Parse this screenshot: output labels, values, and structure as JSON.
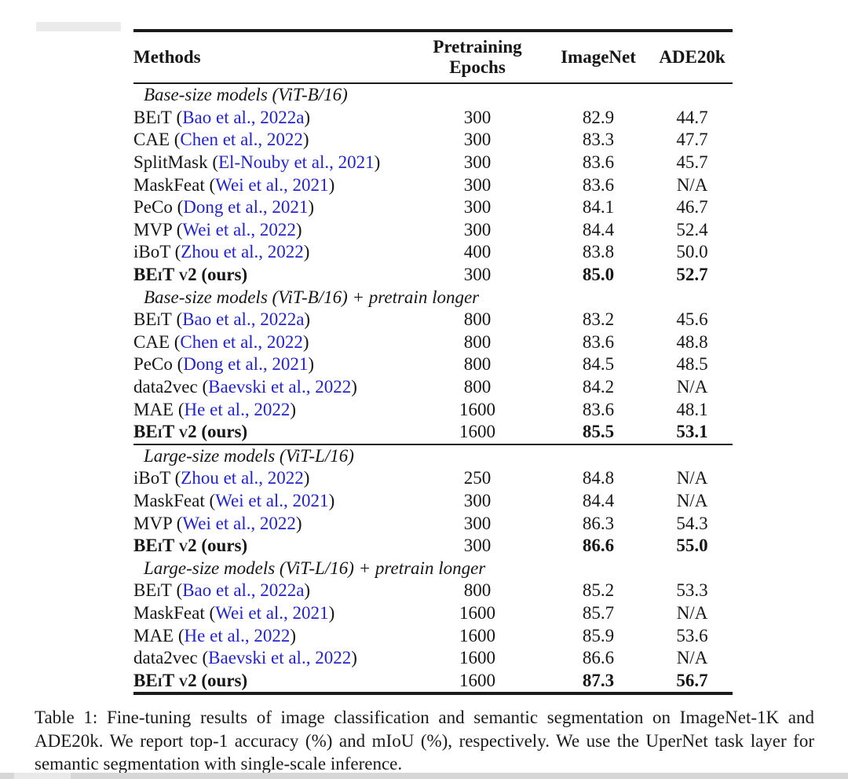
{
  "table": {
    "header": {
      "methods": "Methods",
      "pretraining_line1": "Pretraining",
      "pretraining_line2": "Epochs",
      "imagenet": "ImageNet",
      "ade20k": "ADE20k"
    },
    "accent_blue": "#2323cf",
    "rows": [
      {
        "label": "Base-size models (ViT-B/16)"
      },
      {
        "sc": "BEiT",
        "name": "",
        "open": " (",
        "cite": "Bao et al., 2022a",
        "close": ")",
        "epochs": "300",
        "imagenet": "82.9",
        "ade20k": "44.7"
      },
      {
        "sc": "",
        "name": "CAE",
        "open": " (",
        "cite": "Chen et al., 2022",
        "close": ")",
        "epochs": "300",
        "imagenet": "83.3",
        "ade20k": "47.7"
      },
      {
        "sc": "",
        "name": "SplitMask",
        "open": " (",
        "cite": "El-Nouby et al., 2021",
        "close": ")",
        "epochs": "300",
        "imagenet": "83.6",
        "ade20k": "45.7"
      },
      {
        "sc": "",
        "name": "MaskFeat",
        "open": " (",
        "cite": "Wei et al., 2021",
        "close": ")",
        "epochs": "300",
        "imagenet": "83.6",
        "ade20k": "N/A"
      },
      {
        "sc": "",
        "name": "PeCo",
        "open": " (",
        "cite": "Dong et al., 2021",
        "close": ")",
        "epochs": "300",
        "imagenet": "84.1",
        "ade20k": "46.7"
      },
      {
        "sc": "",
        "name": "MVP",
        "open": " (",
        "cite": "Wei et al., 2022",
        "close": ")",
        "epochs": "300",
        "imagenet": "84.4",
        "ade20k": "52.4"
      },
      {
        "sc": "",
        "name": "iBoT",
        "open": " (",
        "cite": "Zhou et al., 2022",
        "close": ")",
        "epochs": "400",
        "imagenet": "83.8",
        "ade20k": "50.0"
      },
      {
        "sc": "BEiT v2",
        "name": " (ours)",
        "epochs": "300",
        "imagenet": "85.0",
        "ade20k": "52.7"
      },
      {
        "label": "Base-size models (ViT-B/16) + pretrain longer"
      },
      {
        "sc": "BEiT",
        "name": "",
        "open": " (",
        "cite": "Bao et al., 2022a",
        "close": ")",
        "epochs": "800",
        "imagenet": "83.2",
        "ade20k": "45.6"
      },
      {
        "sc": "",
        "name": "CAE",
        "open": " (",
        "cite": "Chen et al., 2022",
        "close": ")",
        "epochs": "800",
        "imagenet": "83.6",
        "ade20k": "48.8"
      },
      {
        "sc": "",
        "name": "PeCo",
        "open": " (",
        "cite": "Dong et al., 2021",
        "close": ")",
        "epochs": "800",
        "imagenet": "84.5",
        "ade20k": "48.5"
      },
      {
        "sc": "",
        "name": "data2vec",
        "open": " (",
        "cite": "Baevski et al., 2022",
        "close": ")",
        "epochs": "800",
        "imagenet": "84.2",
        "ade20k": "N/A"
      },
      {
        "sc": "",
        "name": "MAE",
        "open": " (",
        "cite": "He et al., 2022",
        "close": ")",
        "epochs": "1600",
        "imagenet": "83.6",
        "ade20k": "48.1"
      },
      {
        "sc": "BEiT v2",
        "name": " (ours)",
        "epochs": "1600",
        "imagenet": "85.5",
        "ade20k": "53.1"
      },
      {
        "label": "Large-size models (ViT-L/16)"
      },
      {
        "sc": "",
        "name": "iBoT",
        "open": " (",
        "cite": "Zhou et al., 2022",
        "close": ")",
        "epochs": "250",
        "imagenet": "84.8",
        "ade20k": "N/A"
      },
      {
        "sc": "",
        "name": "MaskFeat",
        "open": " (",
        "cite": "Wei et al., 2021",
        "close": ")",
        "epochs": "300",
        "imagenet": "84.4",
        "ade20k": "N/A"
      },
      {
        "sc": "",
        "name": "MVP",
        "open": " (",
        "cite": "Wei et al., 2022",
        "close": ")",
        "epochs": "300",
        "imagenet": "86.3",
        "ade20k": "54.3"
      },
      {
        "sc": "BEiT v2",
        "name": " (ours)",
        "epochs": "300",
        "imagenet": "86.6",
        "ade20k": "55.0"
      },
      {
        "label": "Large-size models (ViT-L/16) + pretrain longer"
      },
      {
        "sc": "BEiT",
        "name": "",
        "open": " (",
        "cite": "Bao et al., 2022a",
        "close": ")",
        "epochs": "800",
        "imagenet": "85.2",
        "ade20k": "53.3"
      },
      {
        "sc": "",
        "name": "MaskFeat",
        "open": " (",
        "cite": "Wei et al., 2021",
        "close": ")",
        "epochs": "1600",
        "imagenet": "85.7",
        "ade20k": "N/A"
      },
      {
        "sc": "",
        "name": "MAE",
        "open": " (",
        "cite": "He et al., 2022",
        "close": ")",
        "epochs": "1600",
        "imagenet": "85.9",
        "ade20k": "53.6"
      },
      {
        "sc": "",
        "name": "data2vec",
        "open": " (",
        "cite": "Baevski et al., 2022",
        "close": ")",
        "epochs": "1600",
        "imagenet": "86.6",
        "ade20k": "N/A"
      },
      {
        "sc": "BEiT v2",
        "name": " (ours)",
        "epochs": "1600",
        "imagenet": "87.3",
        "ade20k": "56.7"
      }
    ]
  },
  "caption": "Table 1: Fine-tuning results of image classification and semantic segmentation on ImageNet-1K and ADE20k. We report top-1 accuracy (%) and mIoU (%), respectively. We use the UperNet task layer for semantic segmentation with single-scale inference."
}
